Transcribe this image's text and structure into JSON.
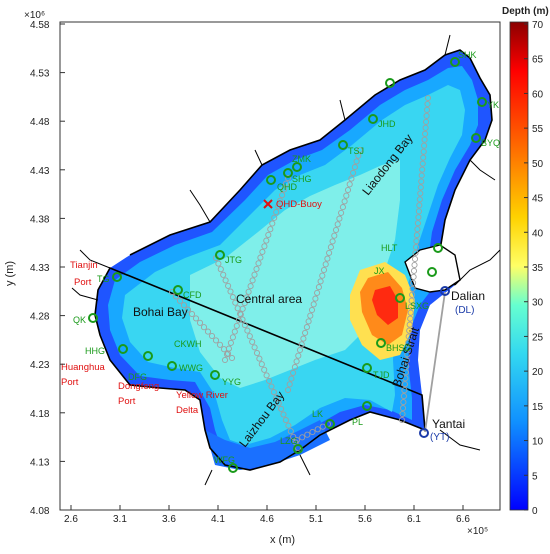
{
  "axes": {
    "x_label": "x (m)",
    "y_label": "y (m)",
    "x_exponent": "×10⁵",
    "y_exponent": "×10⁶",
    "x_ticks": [
      "2.6",
      "3.1",
      "3.6",
      "4.1",
      "4.6",
      "5.1",
      "5.6",
      "6.1",
      "6.6"
    ],
    "y_ticks": [
      "4.58",
      "4.53",
      "4.48",
      "4.43",
      "4.38",
      "4.33",
      "4.28",
      "4.23",
      "4.18",
      "4.13",
      "4.08"
    ]
  },
  "colorbar": {
    "title": "Depth (m)",
    "ticks": [
      "70",
      "65",
      "60",
      "55",
      "50",
      "45",
      "40",
      "35",
      "30",
      "25",
      "20",
      "15",
      "10",
      "5",
      "0"
    ],
    "colors": [
      "#8b0000",
      "#ff0000",
      "#ff6600",
      "#ffd200",
      "#ffff66",
      "#66ffd0",
      "#33d8f0",
      "#1090ff",
      "#0000ff"
    ]
  },
  "regions": [
    "Bohai Bay",
    "Central area",
    "Liaodong Bay",
    "Laizhou Bay",
    "Bohai Strait"
  ],
  "stations": [
    "SHK",
    "YK",
    "BYQ",
    "JHD",
    "TSJ",
    "ZMK",
    "SHG",
    "QHD",
    "HLT",
    "JX",
    "LSXG",
    "BHSD",
    "TJD",
    "PL",
    "LK",
    "LZG",
    "WFG",
    "YYG",
    "WWG",
    "DFG",
    "HHG",
    "CKWH",
    "CFD",
    "JTG",
    "TG",
    "QK"
  ],
  "places": {
    "qhd_buoy": "QHD-Buoy",
    "tianjin": [
      "Tianjin",
      "Port"
    ],
    "huanghua": [
      "Huanghua",
      "Port"
    ],
    "dongfeng": [
      "Dongfeng",
      "Port"
    ],
    "yellow_river": [
      "Yellow River",
      "Delta"
    ],
    "dalian": "Dalian",
    "dalian_code": "(DL)",
    "yantai": "Yantai",
    "yantai_code": "(YT)"
  },
  "colors": {
    "land": "#ffffff",
    "coast": "#000000",
    "station": "#1a9a1a",
    "highlight_text": "#e01010",
    "port_marker": "#1a3aa8",
    "transect": "#a0a0a0"
  }
}
